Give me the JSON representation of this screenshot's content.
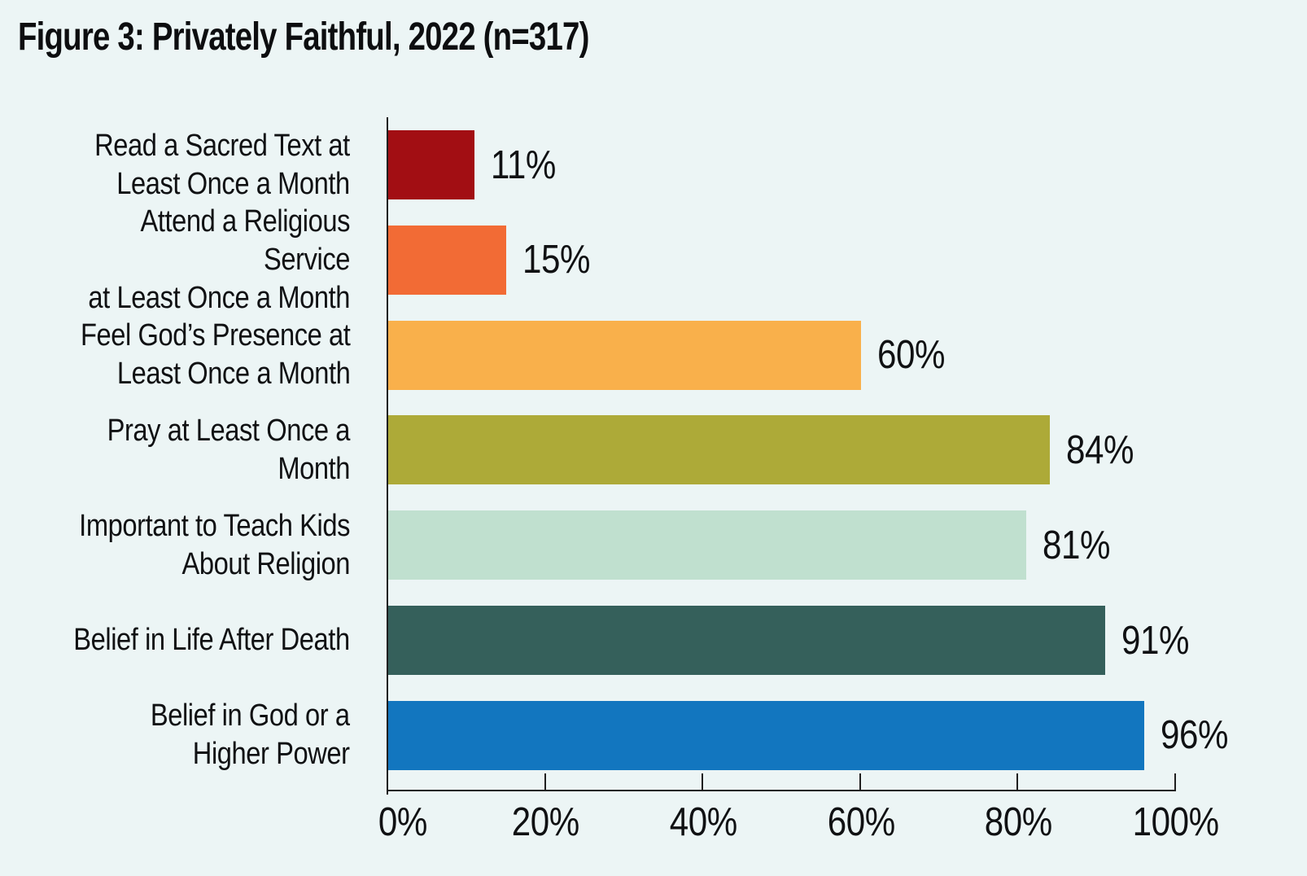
{
  "title": "Figure 3: Privately Faithful, 2022 (n=317)",
  "chart_data": {
    "type": "bar",
    "orientation": "horizontal",
    "title": "Figure 3: Privately Faithful, 2022 (n=317)",
    "sample_size_label": "n=317",
    "year": "2022",
    "categories": [
      [
        "Read a Sacred Text at",
        "Least Once a Month"
      ],
      [
        "Attend a Religious Service",
        "at Least Once a Month"
      ],
      [
        "Feel God’s Presence at",
        "Least Once a Month"
      ],
      [
        "Pray at Least Once a Month"
      ],
      [
        "Important to Teach Kids",
        "About Religion"
      ],
      [
        "Belief in Life After Death"
      ],
      [
        "Belief in God or a",
        "Higher Power"
      ]
    ],
    "values": [
      11,
      15,
      60,
      84,
      81,
      91,
      96
    ],
    "value_labels": [
      "11%",
      "15%",
      "60%",
      "84%",
      "81%",
      "91%",
      "96%"
    ],
    "bar_colors": [
      "#a20e13",
      "#f26b35",
      "#f9b04b",
      "#adaa38",
      "#c0e0cf",
      "#35605b",
      "#1276bf"
    ],
    "xlabel": "",
    "ylabel": "",
    "xlim": [
      0,
      100
    ],
    "x_ticks": [
      0,
      20,
      40,
      60,
      80,
      100
    ],
    "x_tick_labels": [
      "0%",
      "20%",
      "40%",
      "60%",
      "80%",
      "100%"
    ],
    "grid": false,
    "legend": false,
    "background_color": "#ecf5f5",
    "text_color": "#101113",
    "axis_color": "#1f1f1f"
  }
}
